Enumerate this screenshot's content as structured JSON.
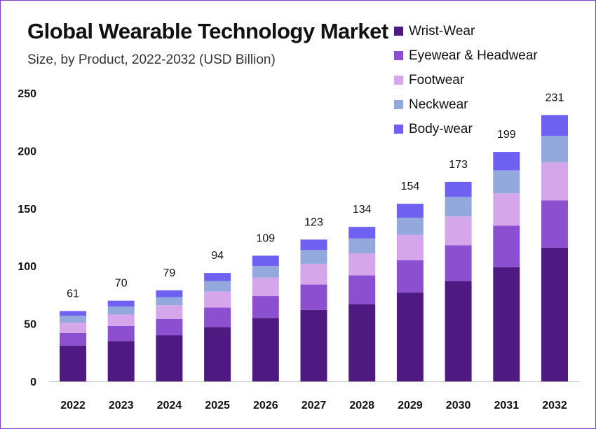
{
  "chart_data": {
    "type": "bar",
    "stacked": true,
    "title": "Global Wearable Technology Market",
    "subtitle": "Size, by Product, 2022-2032 (USD Billion)",
    "categories": [
      "2022",
      "2023",
      "2024",
      "2025",
      "2026",
      "2027",
      "2028",
      "2029",
      "2030",
      "2031",
      "2032"
    ],
    "totals": [
      "61",
      "70",
      "79",
      "94",
      "109",
      "123",
      "134",
      "154",
      "173",
      "199",
      "231"
    ],
    "ylim": [
      0,
      250
    ],
    "yticks": [
      "0",
      "50",
      "100",
      "150",
      "200",
      "250"
    ],
    "grid": false,
    "legend_position": "top-right",
    "series": [
      {
        "name": "Wrist-Wear",
        "color": "#4e1a82",
        "values": [
          31,
          35,
          40,
          47,
          55,
          62,
          67,
          77,
          87,
          99,
          116
        ]
      },
      {
        "name": "Eyewear & Headwear",
        "color": "#8b4fcf",
        "values": [
          11,
          13,
          14,
          17,
          19,
          22,
          25,
          28,
          31,
          36,
          41
        ]
      },
      {
        "name": "Footwear",
        "color": "#d6a6ea",
        "values": [
          9,
          10,
          12,
          14,
          16,
          18,
          19,
          22,
          25,
          28,
          33
        ]
      },
      {
        "name": "Neckwear",
        "color": "#93a8dc",
        "values": [
          6,
          7,
          7,
          9,
          10,
          12,
          13,
          15,
          17,
          20,
          23
        ]
      },
      {
        "name": "Body-wear",
        "color": "#6e60f0",
        "values": [
          4,
          5,
          6,
          7,
          9,
          9,
          10,
          12,
          13,
          16,
          18
        ]
      }
    ]
  }
}
